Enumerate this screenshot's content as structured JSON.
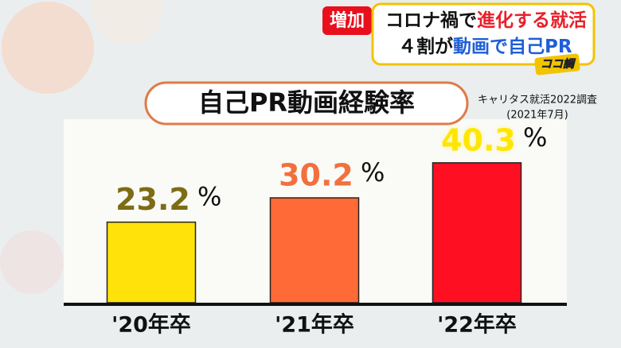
{
  "header": {
    "badge": "増加",
    "line1": [
      "コロナ禍で",
      "進化する就活"
    ],
    "line2": [
      "４割が",
      "動画で自己PR"
    ],
    "logo": "ココ調"
  },
  "source": [
    "キャリタス就活2022調査",
    "(2021年7月)"
  ],
  "chart_data": {
    "type": "bar",
    "title": "自己PR動画経験率",
    "categories": [
      "'20年卒",
      "'21年卒",
      "'22年卒"
    ],
    "values": [
      23.2,
      30.2,
      40.3
    ],
    "unit": "%",
    "colors": [
      "#ffe20a",
      "#ff6a36",
      "#ff0f22"
    ],
    "label_colors": [
      "#7d6c14",
      "#f2703e",
      "#ffe600"
    ]
  }
}
